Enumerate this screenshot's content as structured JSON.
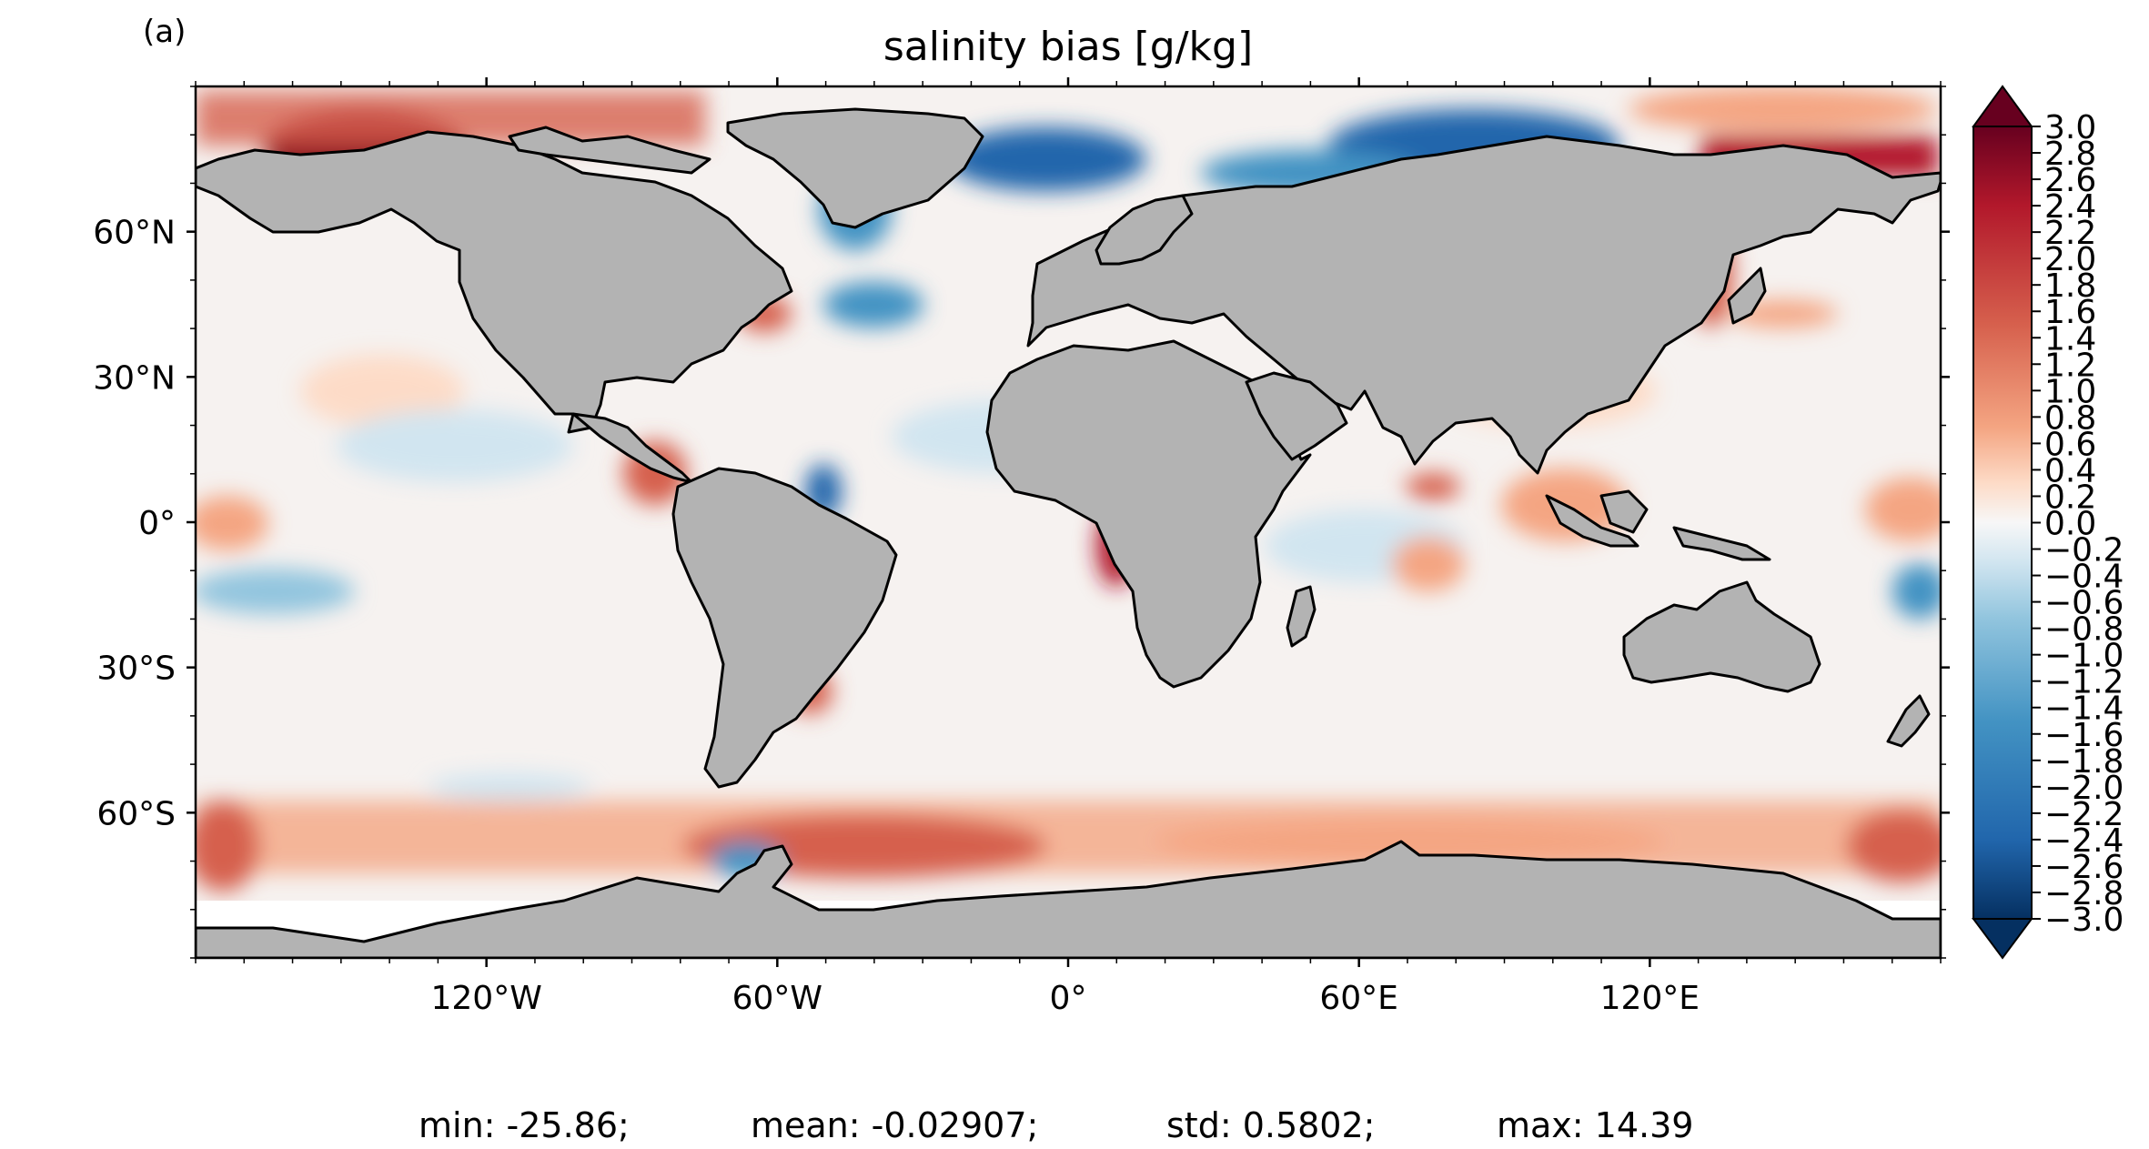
{
  "panel_label": "(a)",
  "title": "salinity bias [g/kg]",
  "lat_ticks": [
    {
      "value": 60,
      "label": "60°N"
    },
    {
      "value": 30,
      "label": "30°N"
    },
    {
      "value": 0,
      "label": "0°"
    },
    {
      "value": -30,
      "label": "30°S"
    },
    {
      "value": -60,
      "label": "60°S"
    }
  ],
  "lon_ticks": [
    {
      "value": -120,
      "label": "120°W"
    },
    {
      "value": -60,
      "label": "60°W"
    },
    {
      "value": 0,
      "label": "0°"
    },
    {
      "value": 60,
      "label": "60°E"
    },
    {
      "value": 120,
      "label": "120°E"
    }
  ],
  "colorbar": {
    "min": -3.0,
    "max": 3.0,
    "extend": "both",
    "colormap": "RdBu_r",
    "labels": [
      "3.0",
      "2.8",
      "2.6",
      "2.4",
      "2.2",
      "2.0",
      "1.8",
      "1.6",
      "1.4",
      "1.2",
      "1.0",
      "0.8",
      "0.6",
      "0.4",
      "0.2",
      "0.0",
      "−0.2",
      "−0.4",
      "−0.6",
      "−0.8",
      "−1.0",
      "−1.2",
      "−1.4",
      "−1.6",
      "−1.8",
      "−2.0",
      "−2.2",
      "−2.4",
      "−2.6",
      "−2.8",
      "−3.0"
    ]
  },
  "stats": {
    "min": "min: -25.86;",
    "mean": "mean: -0.02907;",
    "std": "std: 0.5802;",
    "max": "max: 14.39"
  },
  "colors": {
    "land": "#b3b3b3",
    "ocean_neutral": "#f7f7f7",
    "positive": "#b2182b",
    "negative": "#2166ac"
  }
}
